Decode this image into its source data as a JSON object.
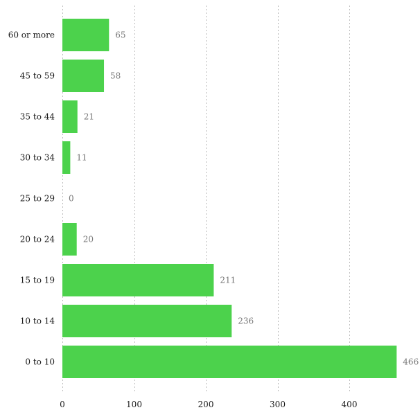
{
  "chart_data": {
    "type": "bar",
    "orientation": "horizontal",
    "categories": [
      "60 or more",
      "45 to 59",
      "35 to 44",
      "30 to 34",
      "25 to 29",
      "20 to 24",
      "15 to 19",
      "10 to 14",
      "0 to 10"
    ],
    "values": [
      65,
      58,
      21,
      11,
      0,
      20,
      211,
      236,
      466
    ],
    "x_ticks": [
      0,
      100,
      200,
      300,
      400
    ],
    "xlim": [
      0,
      466
    ],
    "title": "",
    "xlabel": "",
    "ylabel": "",
    "grid": "vertical-dotted",
    "bar_color": "#4cd24c",
    "value_label_color": "#777777"
  }
}
